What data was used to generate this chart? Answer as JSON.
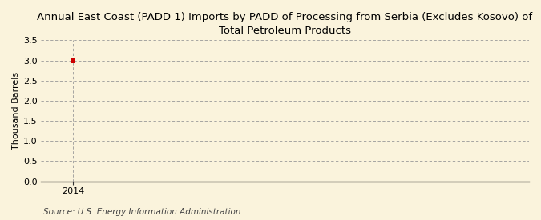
{
  "title_line1": "Annual East Coast (PADD 1) Imports by PADD of Processing from Serbia (Excludes Kosovo) of",
  "title_line2": "Total Petroleum Products",
  "ylabel": "Thousand Barrels",
  "source": "Source: U.S. Energy Information Administration",
  "x_data": [
    2014
  ],
  "y_data": [
    3.0
  ],
  "xlim": [
    2013.4,
    2022.5
  ],
  "ylim": [
    0.0,
    3.5
  ],
  "yticks": [
    0.0,
    0.5,
    1.0,
    1.5,
    2.0,
    2.5,
    3.0,
    3.5
  ],
  "xticks": [
    2014
  ],
  "marker_color": "#cc0000",
  "marker_size": 4,
  "background_color": "#faf3dc",
  "grid_color": "#999999",
  "title_fontsize": 9.5,
  "axis_label_fontsize": 8,
  "tick_fontsize": 8,
  "source_fontsize": 7.5
}
